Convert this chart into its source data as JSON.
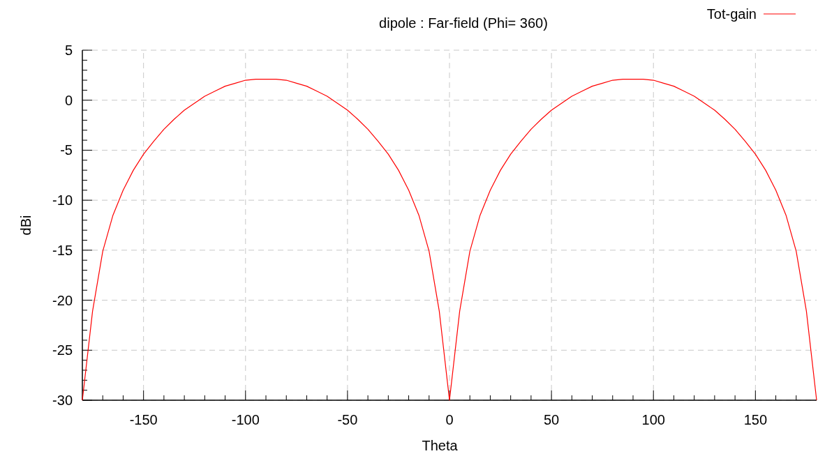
{
  "chart_data": {
    "type": "line",
    "title": "dipole : Far-field (Phi= 360)",
    "xlabel": "Theta",
    "ylabel": "dBi",
    "x": [
      -180,
      -175,
      -170,
      -165,
      -160,
      -155,
      -150,
      -145,
      -140,
      -135,
      -130,
      -125,
      -120,
      -115,
      -110,
      -105,
      -100,
      -95,
      -90,
      -85,
      -80,
      -75,
      -70,
      -65,
      -60,
      -55,
      -50,
      -45,
      -40,
      -35,
      -30,
      -25,
      -20,
      -15,
      -10,
      -5,
      0,
      5,
      10,
      15,
      20,
      25,
      30,
      35,
      40,
      45,
      50,
      55,
      60,
      65,
      70,
      75,
      80,
      85,
      90,
      95,
      100,
      105,
      110,
      115,
      120,
      125,
      130,
      135,
      140,
      145,
      150,
      155,
      160,
      165,
      170,
      175,
      180
    ],
    "series": [
      {
        "name": "Tot-gain",
        "color": "#ff0000",
        "values": [
          -30,
          -21.1,
          -15.1,
          -11.5,
          -9,
          -7,
          -5.4,
          -4.1,
          -2.9,
          -1.9,
          -1,
          -0.3,
          0.4,
          0.9,
          1.4,
          1.7,
          2,
          2.1,
          2.1,
          2.1,
          2,
          1.7,
          1.4,
          0.9,
          0.4,
          -0.3,
          -1,
          -1.9,
          -2.9,
          -4.1,
          -5.4,
          -7,
          -9,
          -11.5,
          -15.1,
          -21.1,
          -30,
          -21.1,
          -15.1,
          -11.5,
          -9,
          -7,
          -5.4,
          -4.1,
          -2.9,
          -1.9,
          -1,
          -0.3,
          0.4,
          0.9,
          1.4,
          1.7,
          2,
          2.1,
          2.1,
          2.1,
          2,
          1.7,
          1.4,
          0.9,
          0.4,
          -0.3,
          -1,
          -1.9,
          -2.9,
          -4.1,
          -5.4,
          -7,
          -9,
          -11.5,
          -15.1,
          -21.1,
          -30
        ]
      }
    ],
    "xlim": [
      -180,
      180
    ],
    "ylim": [
      -30,
      5
    ],
    "xticks": [
      {
        "value": -170,
        "label": null
      },
      {
        "value": -160,
        "label": null
      },
      -150,
      {
        "value": -140,
        "label": null
      },
      {
        "value": -130,
        "label": null
      },
      {
        "value": -120,
        "label": null
      },
      {
        "value": -110,
        "label": null
      },
      -100,
      {
        "value": -90,
        "label": null
      },
      {
        "value": -80,
        "label": null
      },
      {
        "value": -70,
        "label": null
      },
      {
        "value": -60,
        "label": null
      },
      -50,
      {
        "value": -40,
        "label": null
      },
      {
        "value": -30,
        "label": null
      },
      {
        "value": -20,
        "label": null
      },
      {
        "value": -10,
        "label": null
      },
      0,
      {
        "value": 10,
        "label": null
      },
      {
        "value": 20,
        "label": null
      },
      {
        "value": 30,
        "label": null
      },
      {
        "value": 40,
        "label": null
      },
      50,
      {
        "value": 60,
        "label": null
      },
      {
        "value": 70,
        "label": null
      },
      {
        "value": 80,
        "label": null
      },
      {
        "value": 90,
        "label": null
      },
      100,
      {
        "value": 110,
        "label": null
      },
      {
        "value": 120,
        "label": null
      },
      {
        "value": 130,
        "label": null
      },
      {
        "value": 140,
        "label": null
      },
      150,
      {
        "value": 160,
        "label": null
      },
      {
        "value": 170,
        "label": null
      }
    ],
    "yticks": [
      -30,
      {
        "value": -29,
        "label": null
      },
      {
        "value": -28,
        "label": null
      },
      {
        "value": -27,
        "label": null
      },
      {
        "value": -26,
        "label": null
      },
      -25,
      {
        "value": -24,
        "label": null
      },
      {
        "value": -23,
        "label": null
      },
      {
        "value": -22,
        "label": null
      },
      {
        "value": -21,
        "label": null
      },
      -20,
      {
        "value": -19,
        "label": null
      },
      {
        "value": -18,
        "label": null
      },
      {
        "value": -17,
        "label": null
      },
      {
        "value": -16,
        "label": null
      },
      -15,
      {
        "value": -14,
        "label": null
      },
      {
        "value": -13,
        "label": null
      },
      {
        "value": -12,
        "label": null
      },
      {
        "value": -11,
        "label": null
      },
      -10,
      {
        "value": -9,
        "label": null
      },
      {
        "value": -8,
        "label": null
      },
      {
        "value": -7,
        "label": null
      },
      {
        "value": -6,
        "label": null
      },
      -5,
      {
        "value": -4,
        "label": null
      },
      {
        "value": -3,
        "label": null
      },
      {
        "value": -2,
        "label": null
      },
      {
        "value": -1,
        "label": null
      },
      0,
      {
        "value": 1,
        "label": null
      },
      {
        "value": 2,
        "label": null
      },
      {
        "value": 3,
        "label": null
      },
      {
        "value": 4,
        "label": null
      },
      5
    ],
    "grid": true,
    "legend": "top right",
    "marker": "none",
    "line_style": "solid"
  }
}
